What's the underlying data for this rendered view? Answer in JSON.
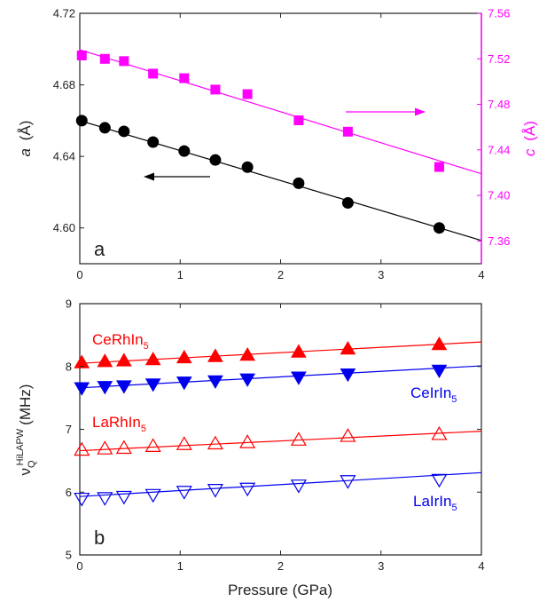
{
  "colors": {
    "black": "#000000",
    "magenta": "#ff00ff",
    "red": "#ff0000",
    "blue": "#0000ee",
    "frame": "#222222"
  },
  "chart_data": [
    {
      "type": "scatter",
      "panel_label": "a",
      "xlim": [
        0,
        4
      ],
      "x_ticks": [
        0,
        1,
        2,
        3,
        4
      ],
      "x_tick_labels": [
        "0",
        "1",
        "2",
        "3",
        "4"
      ],
      "ylim": [
        4.58,
        4.72
      ],
      "y_ticks": [
        4.6,
        4.64,
        4.68,
        4.72
      ],
      "y_tick_labels": [
        "4.60",
        "4.64",
        "4.68",
        "4.72"
      ],
      "ylabel": {
        "symbol": "a",
        "unit": "(Å)"
      },
      "y2lim": [
        7.34,
        7.56
      ],
      "y2_ticks": [
        7.36,
        7.4,
        7.44,
        7.48,
        7.52,
        7.56
      ],
      "y2_tick_labels": [
        "7.36",
        "7.40",
        "7.44",
        "7.48",
        "7.52",
        "7.56"
      ],
      "y2label": {
        "symbol": "c",
        "unit": "(Å)"
      },
      "grid": false,
      "series": [
        {
          "axis": "left",
          "marker": "circle",
          "color": "#000000",
          "x": [
            0.02,
            0.25,
            0.44,
            0.73,
            1.04,
            1.35,
            1.67,
            2.18,
            2.67,
            3.58
          ],
          "values": [
            4.66,
            4.656,
            4.654,
            4.648,
            4.643,
            4.638,
            4.634,
            4.625,
            4.614,
            4.6
          ],
          "fit": {
            "x": [
              0,
              4
            ],
            "y": [
              4.66,
              4.593
            ]
          },
          "arrow_direction": "left"
        },
        {
          "axis": "right",
          "marker": "square",
          "color": "#ff00ff",
          "x": [
            0.02,
            0.25,
            0.44,
            0.73,
            1.04,
            1.35,
            1.67,
            2.18,
            2.67,
            3.58
          ],
          "values": [
            7.523,
            7.52,
            7.518,
            7.507,
            7.503,
            7.493,
            7.489,
            7.466,
            7.456,
            7.425
          ],
          "fit": {
            "x": [
              0,
              4
            ],
            "y": [
              7.528,
              7.419
            ]
          },
          "arrow_direction": "right"
        }
      ]
    },
    {
      "type": "scatter",
      "panel_label": "b",
      "xlabel": "Pressure (GPa)",
      "xlim": [
        0,
        4
      ],
      "x_ticks": [
        0,
        1,
        2,
        3,
        4
      ],
      "x_tick_labels": [
        "0",
        "1",
        "2",
        "3",
        "4"
      ],
      "ylim": [
        5,
        9
      ],
      "y_ticks": [
        5,
        6,
        7,
        8,
        9
      ],
      "y_tick_labels": [
        "5",
        "6",
        "7",
        "8",
        "9"
      ],
      "ylabel": {
        "symbol": "ν",
        "subscript": "Q",
        "superscript": "HiLAPW",
        "unit": "(MHz)"
      },
      "grid": false,
      "series": [
        {
          "label": {
            "base": "CeRhIn",
            "sub": "5"
          },
          "marker": "triangle-up-filled",
          "color": "#ff0000",
          "x": [
            0.02,
            0.25,
            0.44,
            0.73,
            1.04,
            1.35,
            1.67,
            2.18,
            2.67,
            3.58
          ],
          "values": [
            8.06,
            8.08,
            8.09,
            8.11,
            8.14,
            8.16,
            8.18,
            8.23,
            8.28,
            8.35
          ],
          "fit": {
            "x": [
              0,
              4
            ],
            "y": [
              8.05,
              8.39
            ]
          }
        },
        {
          "label": {
            "base": "CeIrIn",
            "sub": "5"
          },
          "marker": "triangle-down-filled",
          "color": "#0000ee",
          "x": [
            0.02,
            0.25,
            0.44,
            0.73,
            1.04,
            1.35,
            1.67,
            2.18,
            2.67,
            3.58
          ],
          "values": [
            7.66,
            7.68,
            7.69,
            7.72,
            7.75,
            7.77,
            7.8,
            7.83,
            7.88,
            7.94
          ],
          "fit": {
            "x": [
              0,
              4
            ],
            "y": [
              7.66,
              8.01
            ]
          }
        },
        {
          "label": {
            "base": "LaRhIn",
            "sub": "5"
          },
          "marker": "triangle-up-open",
          "color": "#ff0000",
          "x": [
            0.02,
            0.25,
            0.44,
            0.73,
            1.04,
            1.35,
            1.67,
            2.18,
            2.67,
            3.58
          ],
          "values": [
            6.67,
            6.69,
            6.7,
            6.73,
            6.76,
            6.77,
            6.79,
            6.83,
            6.89,
            6.92
          ],
          "fit": {
            "x": [
              0,
              4
            ],
            "y": [
              6.66,
              6.97
            ]
          }
        },
        {
          "label": {
            "base": "LaIrIn",
            "sub": "5"
          },
          "marker": "triangle-down-open",
          "color": "#0000ee",
          "x": [
            0.02,
            0.25,
            0.44,
            0.73,
            1.04,
            1.35,
            1.67,
            2.18,
            2.67,
            3.58
          ],
          "values": [
            5.9,
            5.91,
            5.93,
            5.96,
            6.01,
            6.04,
            6.06,
            6.11,
            6.18,
            6.2
          ],
          "fit": {
            "x": [
              0,
              4
            ],
            "y": [
              5.93,
              6.31
            ]
          }
        }
      ]
    }
  ]
}
